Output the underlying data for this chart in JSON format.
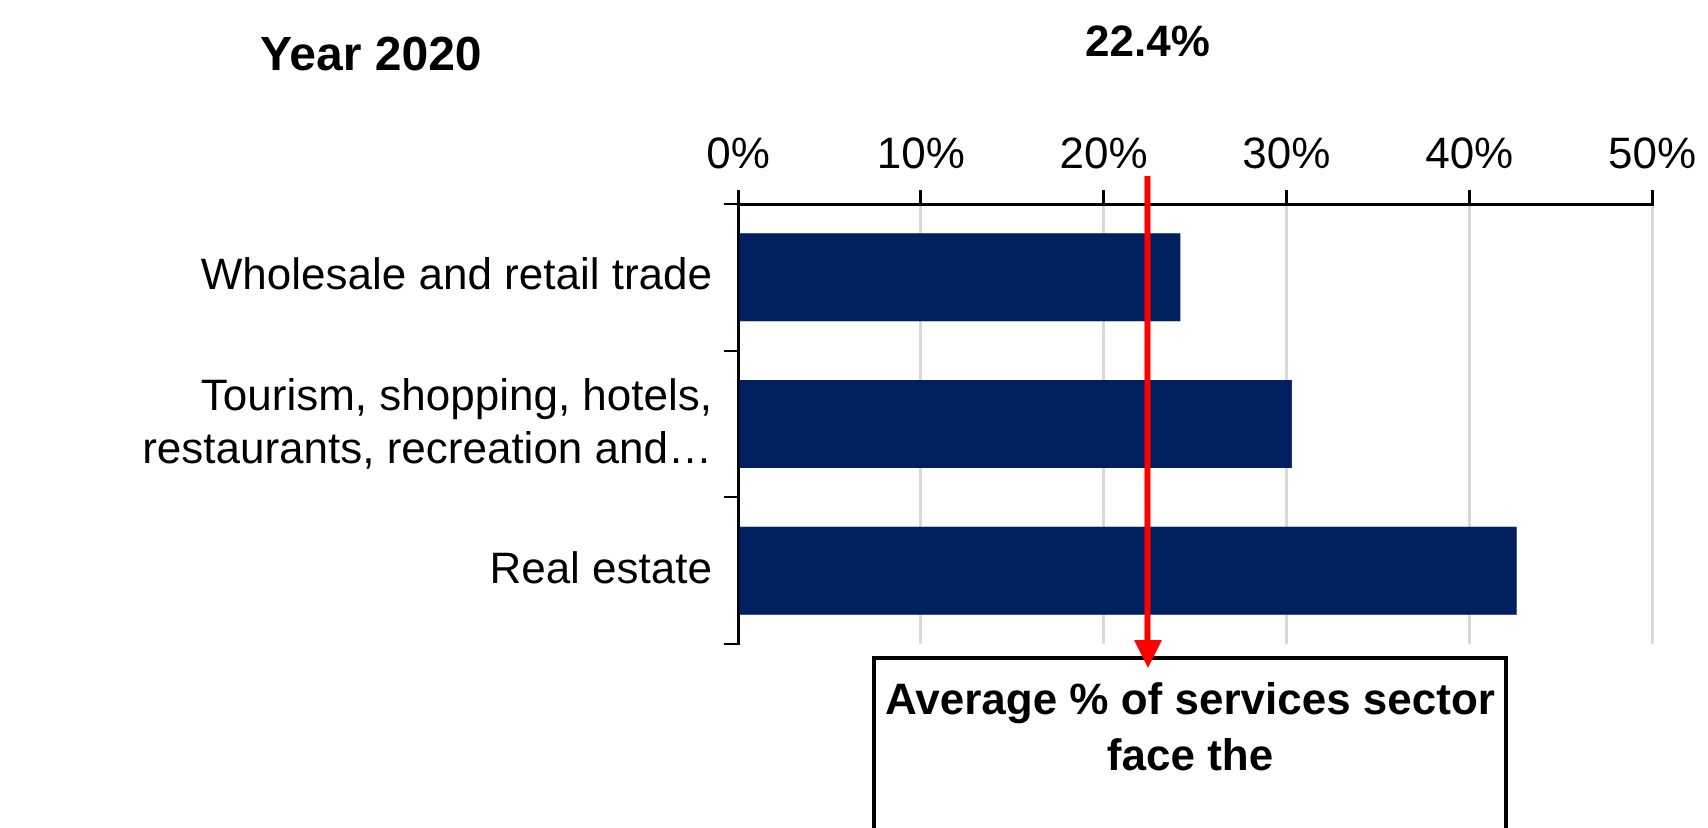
{
  "chart_data": {
    "type": "bar",
    "orientation": "horizontal",
    "title": "Year 2020",
    "categories": [
      "Wholesale and retail trade",
      "Tourism, shopping, hotels, restaurants, recreation and…",
      "Real estate"
    ],
    "values": [
      24.2,
      30.3,
      42.6
    ],
    "color": "#002060",
    "xlim": [
      0,
      50
    ],
    "xticks": [
      {
        "value": 0,
        "label": "0%"
      },
      {
        "value": 10,
        "label": "10%"
      },
      {
        "value": 20,
        "label": "20%"
      },
      {
        "value": 30,
        "label": "30%"
      },
      {
        "value": 40,
        "label": "40%"
      },
      {
        "value": 50,
        "label": "50%"
      }
    ],
    "grid": "x",
    "legend": false,
    "ref_lines": [
      {
        "axis": "x",
        "value": 22.4,
        "label": "22.4%",
        "color": "#ff0000"
      }
    ],
    "annotations": [
      "Average % of services sector face the"
    ]
  }
}
